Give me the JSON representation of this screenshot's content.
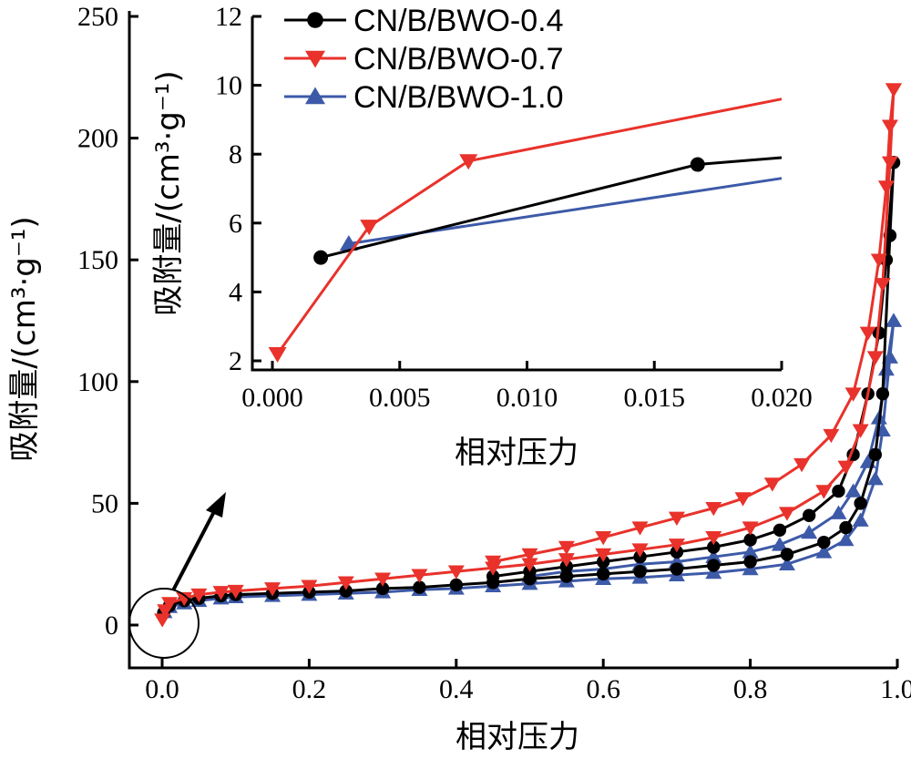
{
  "chart_data": [
    {
      "type": "line",
      "xlabel": "相对压力",
      "ylabel": "吸附量/(cm³·g⁻¹)",
      "xlim": [
        0.0,
        1.0
      ],
      "ylim": [
        -12,
        250
      ],
      "xticks": [
        "0.0",
        "0.2",
        "0.4",
        "0.6",
        "0.8",
        "1.0"
      ],
      "yticks": [
        "0",
        "50",
        "100",
        "150",
        "200",
        "250"
      ],
      "series": [
        {
          "name": "CN/B/BWO-0.4",
          "color": "#000000",
          "marker": "circle",
          "adsorption": [
            [
              0.002,
              5
            ],
            [
              0.01,
              8
            ],
            [
              0.03,
              10
            ],
            [
              0.05,
              11
            ],
            [
              0.08,
              12
            ],
            [
              0.1,
              12.5
            ],
            [
              0.15,
              13
            ],
            [
              0.2,
              13.5
            ],
            [
              0.25,
              14
            ],
            [
              0.3,
              15
            ],
            [
              0.35,
              15.5
            ],
            [
              0.4,
              16.5
            ],
            [
              0.45,
              17.5
            ],
            [
              0.5,
              19
            ],
            [
              0.55,
              20
            ],
            [
              0.6,
              21
            ],
            [
              0.65,
              22
            ],
            [
              0.7,
              23
            ],
            [
              0.75,
              24.5
            ],
            [
              0.8,
              26
            ],
            [
              0.85,
              29
            ],
            [
              0.9,
              34
            ],
            [
              0.93,
              40
            ],
            [
              0.95,
              50
            ],
            [
              0.97,
              70
            ],
            [
              0.98,
              95
            ],
            [
              0.99,
              160
            ],
            [
              0.995,
              190
            ]
          ],
          "desorption": [
            [
              0.995,
              190
            ],
            [
              0.985,
              150
            ],
            [
              0.975,
              120
            ],
            [
              0.96,
              95
            ],
            [
              0.94,
              70
            ],
            [
              0.92,
              55
            ],
            [
              0.88,
              45
            ],
            [
              0.84,
              39
            ],
            [
              0.8,
              35
            ],
            [
              0.75,
              32
            ],
            [
              0.7,
              30
            ],
            [
              0.65,
              28
            ],
            [
              0.6,
              26
            ],
            [
              0.55,
              24
            ],
            [
              0.5,
              22
            ],
            [
              0.45,
              20
            ]
          ]
        },
        {
          "name": "CN/B/BWO-0.7",
          "color": "#e8322b",
          "marker": "triangle-down",
          "adsorption": [
            [
              0.0002,
              2.2
            ],
            [
              0.004,
              6
            ],
            [
              0.01,
              9
            ],
            [
              0.03,
              11
            ],
            [
              0.05,
              12.5
            ],
            [
              0.08,
              13.5
            ],
            [
              0.1,
              14
            ],
            [
              0.15,
              15
            ],
            [
              0.2,
              16
            ],
            [
              0.25,
              17.5
            ],
            [
              0.3,
              19
            ],
            [
              0.35,
              20.5
            ],
            [
              0.4,
              22
            ],
            [
              0.45,
              23.5
            ],
            [
              0.5,
              25
            ],
            [
              0.55,
              27
            ],
            [
              0.6,
              29
            ],
            [
              0.65,
              31
            ],
            [
              0.7,
              33
            ],
            [
              0.75,
              36
            ],
            [
              0.8,
              40
            ],
            [
              0.85,
              46
            ],
            [
              0.9,
              55
            ],
            [
              0.93,
              65
            ],
            [
              0.95,
              80
            ],
            [
              0.97,
              110
            ],
            [
              0.98,
              140
            ],
            [
              0.99,
              190
            ],
            [
              0.995,
              220
            ]
          ],
          "desorption": [
            [
              0.995,
              220
            ],
            [
              0.99,
              205
            ],
            [
              0.985,
              180
            ],
            [
              0.975,
              150
            ],
            [
              0.96,
              120
            ],
            [
              0.94,
              95
            ],
            [
              0.91,
              78
            ],
            [
              0.87,
              66
            ],
            [
              0.83,
              58
            ],
            [
              0.79,
              52
            ],
            [
              0.75,
              48
            ],
            [
              0.7,
              44
            ],
            [
              0.65,
              40
            ],
            [
              0.6,
              36
            ],
            [
              0.55,
              32
            ],
            [
              0.5,
              29
            ],
            [
              0.45,
              26
            ]
          ]
        },
        {
          "name": "CN/B/BWO-1.0",
          "color": "#3d5aa8",
          "marker": "triangle-up",
          "adsorption": [
            [
              0.003,
              5.4
            ],
            [
              0.01,
              7.5
            ],
            [
              0.03,
              9
            ],
            [
              0.05,
              10
            ],
            [
              0.08,
              11
            ],
            [
              0.1,
              11.5
            ],
            [
              0.15,
              12
            ],
            [
              0.2,
              12.5
            ],
            [
              0.25,
              13
            ],
            [
              0.3,
              13.5
            ],
            [
              0.35,
              14.5
            ],
            [
              0.4,
              15
            ],
            [
              0.45,
              16
            ],
            [
              0.5,
              17
            ],
            [
              0.55,
              18
            ],
            [
              0.6,
              19
            ],
            [
              0.65,
              19.5
            ],
            [
              0.7,
              20.5
            ],
            [
              0.75,
              21.5
            ],
            [
              0.8,
              23
            ],
            [
              0.85,
              25
            ],
            [
              0.9,
              30
            ],
            [
              0.93,
              35
            ],
            [
              0.95,
              43
            ],
            [
              0.97,
              60
            ],
            [
              0.98,
              80
            ],
            [
              0.99,
              110
            ],
            [
              0.995,
              125
            ]
          ],
          "desorption": [
            [
              0.995,
              125
            ],
            [
              0.985,
              105
            ],
            [
              0.975,
              85
            ],
            [
              0.96,
              67
            ],
            [
              0.94,
              55
            ],
            [
              0.92,
              46
            ],
            [
              0.88,
              38
            ],
            [
              0.84,
              33
            ],
            [
              0.8,
              30
            ],
            [
              0.75,
              28
            ],
            [
              0.7,
              26
            ],
            [
              0.65,
              25
            ],
            [
              0.6,
              23
            ],
            [
              0.55,
              22
            ],
            [
              0.5,
              20
            ]
          ]
        }
      ]
    },
    {
      "type": "line",
      "xlabel": "相对压力",
      "ylabel": "吸附量/(cm³·g⁻¹)",
      "xlim": [
        -0.001,
        0.02
      ],
      "ylim": [
        1.7,
        12
      ],
      "xticks": [
        "0.000",
        "0.005",
        "0.010",
        "0.015",
        "0.020"
      ],
      "yticks": [
        "2",
        "4",
        "6",
        "8",
        "10",
        "12"
      ],
      "legend_position": "top-right",
      "series": [
        {
          "name": "CN/B/BWO-0.4",
          "color": "#000000",
          "marker": "circle",
          "x": [
            0.0019,
            0.0167,
            0.02
          ],
          "y": [
            5.0,
            7.7,
            7.9
          ]
        },
        {
          "name": "CN/B/BWO-0.7",
          "color": "#e8322b",
          "marker": "triangle-down",
          "x": [
            0.0002,
            0.0038,
            0.0077,
            0.02
          ],
          "y": [
            2.2,
            5.9,
            7.8,
            9.6
          ]
        },
        {
          "name": "CN/B/BWO-1.0",
          "color": "#3d5aa8",
          "marker": "triangle-up",
          "x": [
            0.003,
            0.02
          ],
          "y": [
            5.4,
            7.3
          ]
        }
      ]
    }
  ]
}
